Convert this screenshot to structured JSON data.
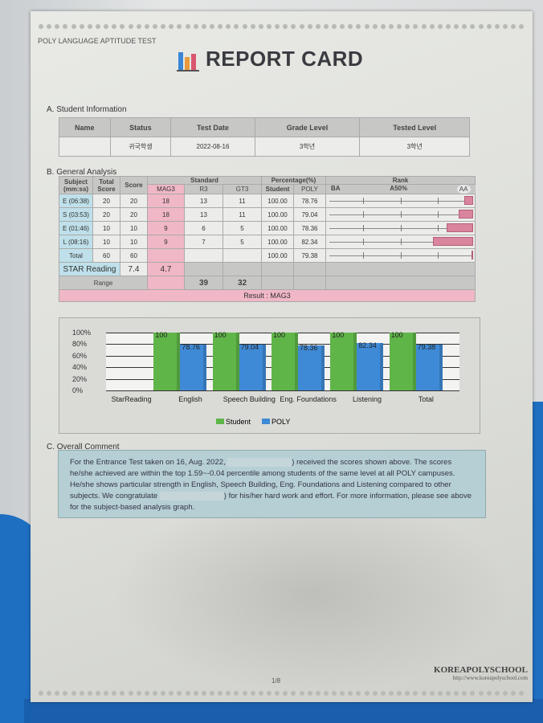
{
  "header": {
    "test_name": "POLY LANGUAGE APTITUDE TEST",
    "title": "REPORT CARD"
  },
  "student_info": {
    "heading": "A. Student Information",
    "columns": [
      "Name",
      "Status",
      "Test Date",
      "Grade Level",
      "Tested Level"
    ],
    "values": [
      "",
      "귀국학생",
      "2022-08-16",
      "3학년",
      "3학년"
    ]
  },
  "analysis": {
    "heading": "B. General Analysis",
    "headers": {
      "subject": "Subject (mm:ss)",
      "total_score": "Total Score",
      "score": "Score",
      "standard": "Standard",
      "mag3": "MAG3",
      "r3": "R3",
      "gt3": "GT3",
      "percentage": "Percentage(%)",
      "student": "Student",
      "poly": "POLY",
      "rank": "Rank",
      "ba": "BA",
      "a50": "A50%",
      "aa": "AA"
    },
    "rows": [
      {
        "subject": "E (06:38)",
        "total": "20",
        "score": "20",
        "mag3": "18",
        "r3": "13",
        "gt3": "11",
        "student": "100.00",
        "poly": "78.76",
        "rank": 0.06
      },
      {
        "subject": "S (03:53)",
        "total": "20",
        "score": "20",
        "mag3": "18",
        "r3": "13",
        "gt3": "11",
        "student": "100.00",
        "poly": "79.04",
        "rank": 0.1
      },
      {
        "subject": "E (01:46)",
        "total": "10",
        "score": "10",
        "mag3": "9",
        "r3": "6",
        "gt3": "5",
        "student": "100.00",
        "poly": "78.36",
        "rank": 0.18
      },
      {
        "subject": "L (08:16)",
        "total": "10",
        "score": "10",
        "mag3": "9",
        "r3": "7",
        "gt3": "5",
        "student": "100.00",
        "poly": "82.34",
        "rank": 0.27
      },
      {
        "subject": "Total",
        "total": "60",
        "score": "60",
        "mag3": "",
        "r3": "",
        "gt3": "",
        "student": "100.00",
        "poly": "79.38",
        "rank": 0.01
      }
    ],
    "star_reading": {
      "label": "STAR Reading",
      "score": "7.4",
      "mag3": "4.7"
    },
    "range": {
      "label": "Range",
      "r3": "39",
      "gt3": "32"
    },
    "result": "Result : MAG3"
  },
  "chart_data": {
    "type": "bar",
    "categories": [
      "StarReading",
      "English",
      "Speech Building",
      "Eng. Foundations",
      "Listening",
      "Total"
    ],
    "series": [
      {
        "name": "Student",
        "color": "#5fb548",
        "values": [
          null,
          100,
          100,
          100,
          100,
          100
        ]
      },
      {
        "name": "POLY",
        "color": "#3f8ad6",
        "values": [
          null,
          78.76,
          79.04,
          78.36,
          82.34,
          79.38
        ]
      }
    ],
    "data_labels": {
      "Student": [
        "",
        "100",
        "100",
        "100",
        "100",
        "100"
      ],
      "POLY": [
        "",
        "78.76",
        "79.04",
        "78.36",
        "82.34",
        "79.38"
      ]
    },
    "yticks": [
      "100%",
      "80%",
      "60%",
      "40%",
      "20%",
      "0%"
    ],
    "ylim": [
      0,
      100
    ],
    "legend": "bottom"
  },
  "comment": {
    "heading": "C. Overall Comment",
    "p1": "For the Entrance Test taken on 16, Aug. 2022,",
    "p2": ") received the scores shown above. The scores he/she achieved are within the top 1.59~-0.04 percentile among students of the same level at all POLY campuses. He/she shows particular strength in English, Speech Building, Eng. Foundations and Listening compared to other subjects. We congratulate",
    "p3": ") for his/her hard work and effort. For more information, please see above for the subject-based analysis graph."
  },
  "footer": {
    "page": "1/8",
    "brand": "KOREAPOLYSCHOOL",
    "url": "http://www.koreapolyschool.com"
  }
}
